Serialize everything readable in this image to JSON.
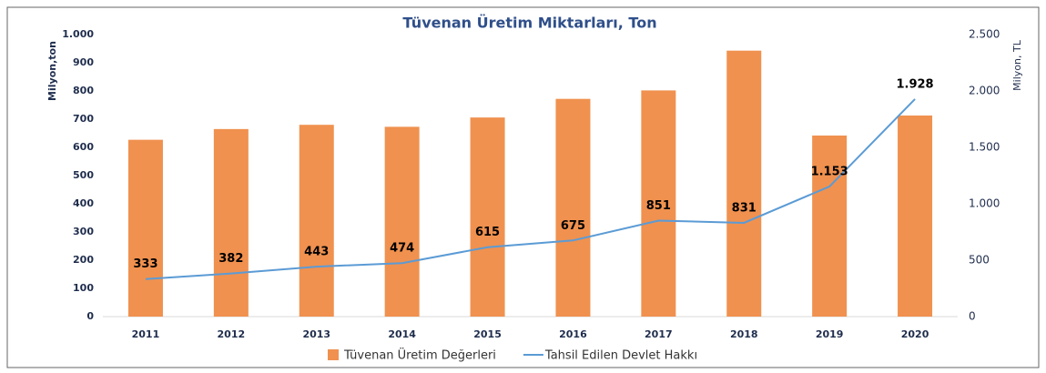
{
  "chart_data": {
    "type": "bar_line",
    "title": "Tüvenan Üretim Miktarları, Ton",
    "ylabel": "Milyon,ton",
    "y2label": "Milyon, TL",
    "categories": [
      "2011",
      "2012",
      "2013",
      "2014",
      "2015",
      "2016",
      "2017",
      "2018",
      "2019",
      "2020"
    ],
    "series": [
      {
        "name": "Tüvenan Üretim Değerleri",
        "type": "bar",
        "color": "#f0914f",
        "values": [
          627,
          665,
          680,
          673,
          706,
          772,
          802,
          943,
          642,
          713
        ]
      },
      {
        "name": "Tahsil Edilen Devlet Hakkı",
        "type": "line",
        "axis": "y2",
        "color": "#5b9bd5",
        "values": [
          333,
          382,
          443,
          474,
          615,
          675,
          851,
          831,
          1153,
          1928
        ],
        "value_labels": [
          "333",
          "382",
          "443",
          "474",
          "615",
          "675",
          "851",
          "831",
          "1.153",
          "1.928"
        ]
      }
    ],
    "ylim": [
      0,
      1000
    ],
    "yticks": [
      0,
      100,
      200,
      300,
      400,
      500,
      600,
      700,
      800,
      900,
      {
        "value": 1000,
        "label": "1.000"
      }
    ],
    "y2lim": [
      0,
      2500
    ],
    "y2ticks": [
      0,
      500,
      {
        "value": 1000,
        "label": "1.000"
      },
      {
        "value": 1500,
        "label": "1.500"
      },
      {
        "value": 2000,
        "label": "2.000"
      },
      {
        "value": 2500,
        "label": "2.500"
      }
    ],
    "legend": "bottom"
  }
}
